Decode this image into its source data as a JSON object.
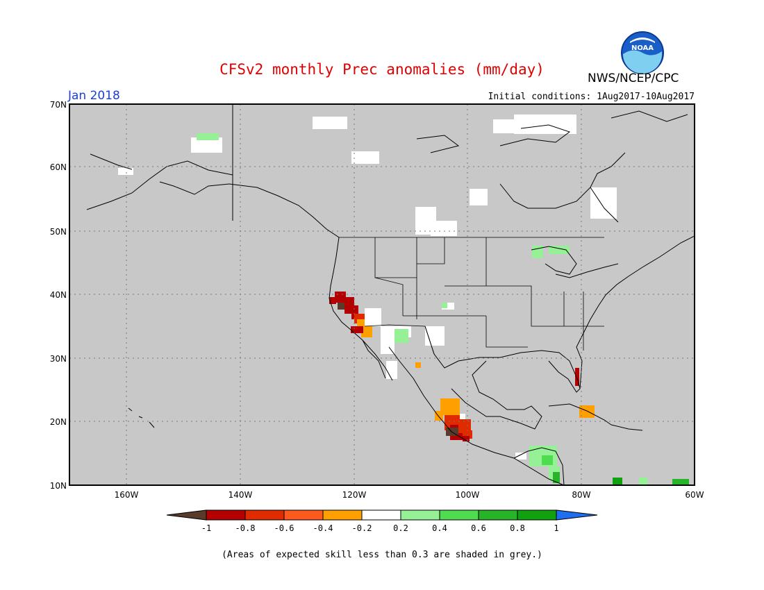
{
  "title": "CFSv2 monthly Prec anomalies (mm/day)",
  "agency": "NWS/NCEP/CPC",
  "logo_text": "NOAA",
  "period": "Jan 2018",
  "initial_conditions": "Initial conditions: 1Aug2017-10Aug2017",
  "footnote": "(Areas of expected skill less than 0.3 are shaded in grey.)",
  "map": {
    "lon_range": [
      -170,
      -60
    ],
    "lat_range": [
      10,
      70
    ],
    "lat_ticks": [
      "10N",
      "20N",
      "30N",
      "40N",
      "50N",
      "60N",
      "70N"
    ],
    "lon_ticks": [
      "160W",
      "140W",
      "120W",
      "100W",
      "80W",
      "60W"
    ],
    "grid": "dotted",
    "background_color": "#c8c8c8"
  },
  "colorbar": {
    "labels": [
      "-1",
      "-0.8",
      "-0.6",
      "-0.4",
      "-0.2",
      "0.2",
      "0.4",
      "0.6",
      "0.8",
      "1"
    ],
    "colors": [
      "#5a3a2a",
      "#b40000",
      "#e02a00",
      "#ff5a1e",
      "#ffa000",
      "#ffffff",
      "#96f096",
      "#50dc50",
      "#28b428",
      "#10a010",
      "#1e6ef0"
    ]
  }
}
